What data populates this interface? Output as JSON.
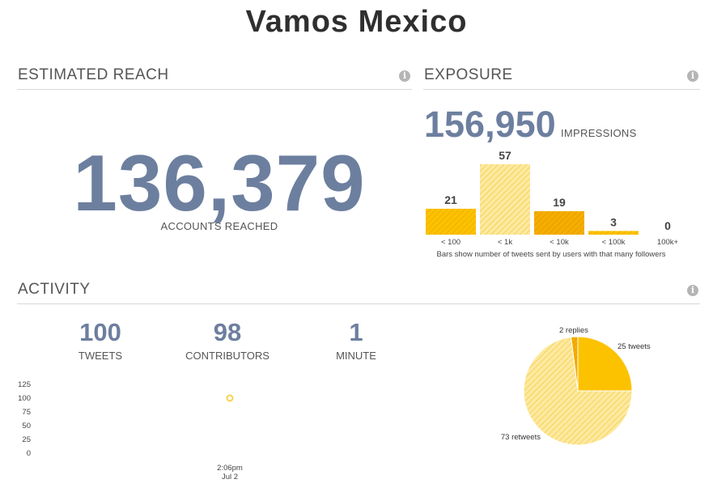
{
  "page_title": "Vamos Mexico",
  "reach": {
    "heading": "ESTIMATED REACH",
    "value": "136,379",
    "caption": "ACCOUNTS REACHED",
    "info_icon": "info-icon"
  },
  "exposure": {
    "heading": "EXPOSURE",
    "value": "156,950",
    "unit": "IMPRESSIONS",
    "footnote": "Bars show number of tweets sent by users with that many followers",
    "info_icon": "info-icon"
  },
  "activity": {
    "heading": "ACTIVITY",
    "info_icon": "info-icon",
    "stats": [
      {
        "value": "100",
        "label": "TWEETS"
      },
      {
        "value": "98",
        "label": "CONTRIBUTORS"
      },
      {
        "value": "1",
        "label": "MINUTE"
      }
    ]
  },
  "colors": {
    "number_blue": "#6d7f9f",
    "yellow": "#fcc200",
    "light_yellow": "#fde38a",
    "orange": "#f5b000"
  },
  "chart_data": [
    {
      "type": "bar",
      "categories": [
        "< 100",
        "< 1k",
        "< 10k",
        "< 100k",
        "100k+"
      ],
      "values": [
        21,
        57,
        19,
        3,
        0
      ],
      "ylim": [
        0,
        57
      ],
      "grid": false
    },
    {
      "type": "scatter",
      "x": [
        "2:06pm Jul 2"
      ],
      "y": [
        100
      ],
      "x_ticks": [
        {
          "time": "2:06pm",
          "date": "Jul 2"
        }
      ],
      "y_ticks": [
        0,
        25,
        50,
        75,
        100,
        125
      ],
      "ylim": [
        0,
        125
      ],
      "grid": false
    },
    {
      "type": "pie",
      "labels": [
        "25 tweets",
        "73 retweets",
        "2 replies"
      ],
      "values": [
        25,
        73,
        2
      ]
    }
  ]
}
